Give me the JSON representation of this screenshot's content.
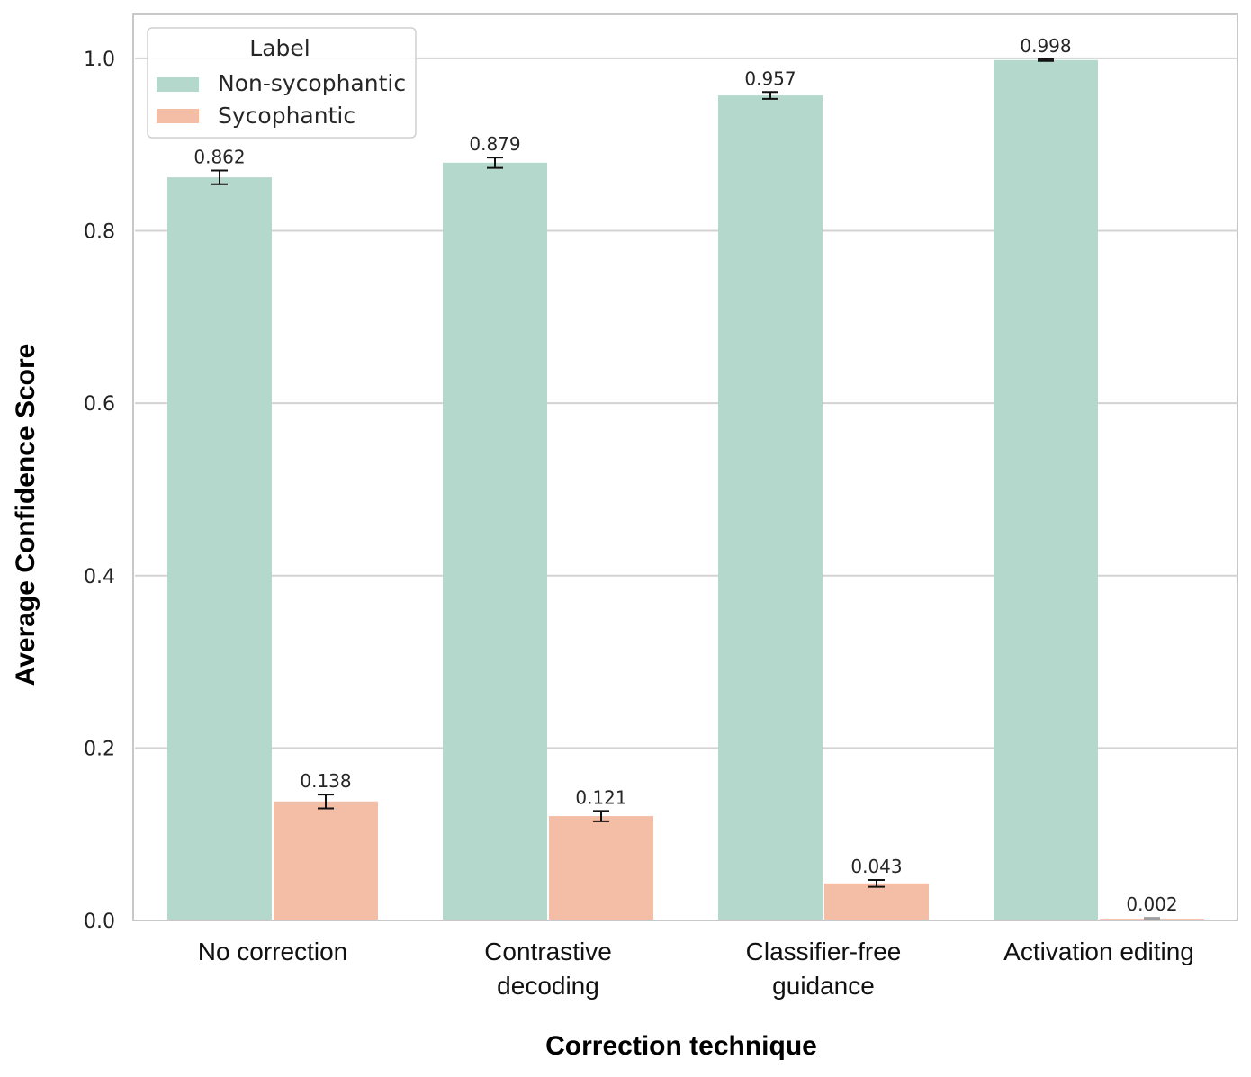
{
  "chart_data": {
    "type": "bar",
    "categories": [
      [
        "No correction"
      ],
      [
        "Contrastive",
        "decoding"
      ],
      [
        "Classifier-free",
        "guidance"
      ],
      [
        "Activation editing"
      ]
    ],
    "series": [
      {
        "name": "Non-sycophantic",
        "color": "#b5d8cc",
        "values": [
          0.862,
          0.879,
          0.957,
          0.998
        ],
        "errors": [
          0.008,
          0.006,
          0.004,
          0.001
        ]
      },
      {
        "name": "Sycophantic",
        "color": "#f4bda6",
        "values": [
          0.138,
          0.121,
          0.043,
          0.002
        ],
        "errors": [
          0.008,
          0.006,
          0.004,
          0.001
        ]
      }
    ],
    "value_labels": [
      [
        "0.862",
        "0.879",
        "0.957",
        "0.998"
      ],
      [
        "0.138",
        "0.121",
        "0.043",
        "0.002"
      ]
    ],
    "xlabel": "Correction technique",
    "ylabel": "Average Confidence Score",
    "ylim": [
      0,
      1.05
    ],
    "yticks": [
      0.0,
      0.2,
      0.4,
      0.6,
      0.8,
      1.0
    ],
    "ytick_labels": [
      "0.0",
      "0.2",
      "0.4",
      "0.6",
      "0.8",
      "1.0"
    ],
    "legend": {
      "title": "Label",
      "position": "top-left"
    },
    "grid": "horizontal"
  }
}
